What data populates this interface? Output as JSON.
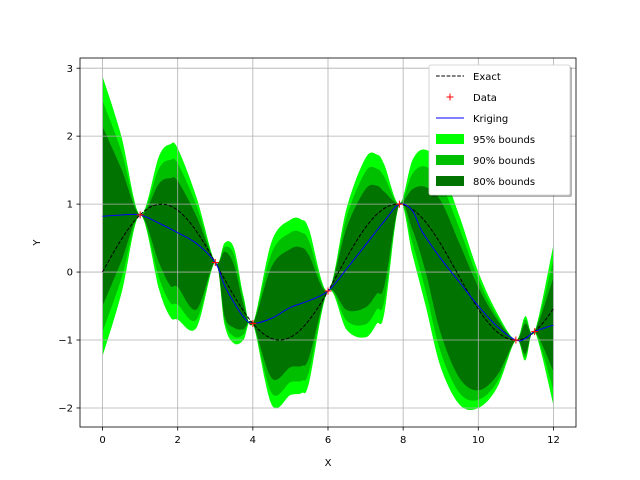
{
  "chart_data": {
    "type": "line",
    "xlabel": "X",
    "ylabel": "Y",
    "xlim": [
      -0.6,
      12.6
    ],
    "ylim": [
      -2.28,
      3.15
    ],
    "xticks": [
      0,
      2,
      4,
      6,
      8,
      10,
      12
    ],
    "yticks": [
      -2,
      -1,
      0,
      1,
      2,
      3
    ],
    "xtick_labels": [
      "0",
      "2",
      "4",
      "6",
      "8",
      "10",
      "12"
    ],
    "ytick_labels": [
      "−2",
      "−1",
      "0",
      "1",
      "2",
      "3"
    ],
    "grid": true,
    "legend_position": "top-right",
    "colors": {
      "exact": "#000000",
      "data": "#ff0000",
      "kriging": "#0000ff",
      "band95": "#00ff00",
      "band90": "#00bf00",
      "band80": "#007300"
    },
    "series": [
      {
        "name": "Exact",
        "style": "dashed-line",
        "function": "sin(x)",
        "x_range": [
          0,
          12
        ]
      },
      {
        "name": "Data",
        "style": "plus-markers",
        "x": [
          1.0,
          3.0,
          4.0,
          6.0,
          7.9,
          11.0,
          11.5
        ],
        "y": [
          0.841,
          0.141,
          -0.757,
          -0.279,
          0.999,
          -1.0,
          -0.876
        ]
      },
      {
        "name": "Kriging",
        "style": "line",
        "x": [
          0,
          0.5,
          1.0,
          1.5,
          2.0,
          2.5,
          3.0,
          3.25,
          3.5,
          3.75,
          4.0,
          4.5,
          5.0,
          5.5,
          6.0,
          6.5,
          7.0,
          7.5,
          7.9,
          8.25,
          8.5,
          9.0,
          9.5,
          10.0,
          10.5,
          11.0,
          11.25,
          11.5,
          12.0
        ],
        "y": [
          0.82,
          0.84,
          0.841,
          0.72,
          0.58,
          0.42,
          0.141,
          -0.2,
          -0.45,
          -0.66,
          -0.757,
          -0.68,
          -0.52,
          -0.42,
          -0.279,
          0.05,
          0.4,
          0.75,
          0.999,
          0.9,
          0.6,
          0.2,
          -0.15,
          -0.5,
          -0.8,
          -1.0,
          -0.98,
          -0.876,
          -0.78
        ]
      }
    ],
    "bands": [
      {
        "name": "95% bounds",
        "x": [
          0,
          0.5,
          1.0,
          1.5,
          1.8,
          2.0,
          2.5,
          3.0,
          3.25,
          3.5,
          3.75,
          4.0,
          4.5,
          5.0,
          5.3,
          5.5,
          6.0,
          6.5,
          7.0,
          7.3,
          7.5,
          7.9,
          8.25,
          8.6,
          9.0,
          9.5,
          10.0,
          10.5,
          11.0,
          11.25,
          11.5,
          12.0
        ],
        "upper": [
          2.88,
          2.0,
          0.841,
          1.7,
          1.88,
          1.82,
          1.1,
          0.141,
          0.43,
          0.35,
          -0.35,
          -0.757,
          0.45,
          0.77,
          0.77,
          0.62,
          -0.279,
          0.95,
          1.68,
          1.73,
          1.58,
          0.999,
          1.65,
          1.8,
          1.55,
          0.82,
          0.0,
          -0.6,
          -1.0,
          -0.65,
          -0.876,
          0.4
        ],
        "lower": [
          -1.24,
          -0.32,
          0.841,
          -0.25,
          -0.66,
          -0.7,
          -0.82,
          0.141,
          -0.78,
          -1.05,
          -1.0,
          -0.757,
          -1.95,
          -1.81,
          -1.78,
          -1.62,
          -0.279,
          -0.85,
          -0.96,
          -0.76,
          -0.6,
          0.999,
          0.25,
          -0.5,
          -1.4,
          -1.95,
          -2.0,
          -1.7,
          -1.0,
          -1.3,
          -0.876,
          -1.96
        ]
      },
      {
        "name": "90% bounds",
        "x": [
          0,
          0.5,
          1.0,
          1.5,
          1.8,
          2.0,
          2.5,
          3.0,
          3.25,
          3.5,
          3.75,
          4.0,
          4.5,
          5.0,
          5.3,
          5.5,
          6.0,
          6.5,
          7.0,
          7.3,
          7.5,
          7.9,
          8.25,
          8.6,
          9.0,
          9.5,
          10.0,
          10.5,
          11.0,
          11.25,
          11.5,
          12.0
        ],
        "upper": [
          2.52,
          1.78,
          0.841,
          1.52,
          1.65,
          1.6,
          0.98,
          0.141,
          0.37,
          0.25,
          -0.4,
          -0.757,
          0.28,
          0.58,
          0.58,
          0.45,
          -0.279,
          0.82,
          1.48,
          1.52,
          1.4,
          0.999,
          1.45,
          1.55,
          1.32,
          0.64,
          -0.1,
          -0.65,
          -1.0,
          -0.7,
          -0.876,
          0.18
        ],
        "lower": [
          -0.88,
          -0.1,
          0.841,
          -0.08,
          -0.45,
          -0.48,
          -0.7,
          0.141,
          -0.72,
          -0.95,
          -0.92,
          -0.757,
          -1.78,
          -1.62,
          -1.6,
          -1.45,
          -0.279,
          -0.72,
          -0.77,
          -0.55,
          -0.42,
          0.999,
          0.42,
          -0.28,
          -1.18,
          -1.78,
          -1.88,
          -1.62,
          -1.0,
          -1.25,
          -0.876,
          -1.74
        ]
      },
      {
        "name": "80% bounds",
        "x": [
          0,
          0.5,
          1.0,
          1.5,
          1.8,
          2.0,
          2.5,
          3.0,
          3.25,
          3.5,
          3.75,
          4.0,
          4.5,
          5.0,
          5.3,
          5.5,
          6.0,
          6.5,
          7.0,
          7.3,
          7.5,
          7.9,
          8.25,
          8.6,
          9.0,
          9.5,
          10.0,
          10.5,
          11.0,
          11.25,
          11.5,
          12.0
        ],
        "upper": [
          2.14,
          1.52,
          0.841,
          1.3,
          1.38,
          1.34,
          0.82,
          0.141,
          0.3,
          0.1,
          -0.48,
          -0.757,
          0.08,
          0.34,
          0.36,
          0.24,
          -0.279,
          0.66,
          1.22,
          1.27,
          1.18,
          0.999,
          1.22,
          1.25,
          1.05,
          0.42,
          -0.22,
          -0.7,
          -1.0,
          -0.76,
          -0.876,
          -0.08
        ],
        "lower": [
          -0.5,
          0.16,
          0.841,
          0.14,
          -0.2,
          -0.22,
          -0.55,
          0.141,
          -0.65,
          -0.82,
          -0.84,
          -0.757,
          -1.56,
          -1.4,
          -1.38,
          -1.25,
          -0.279,
          -0.56,
          -0.52,
          -0.32,
          -0.2,
          0.999,
          0.62,
          0.0,
          -0.9,
          -1.56,
          -1.74,
          -1.52,
          -1.0,
          -1.2,
          -0.876,
          -1.46
        ]
      }
    ],
    "legend": [
      {
        "label": "Exact",
        "kind": "dashed"
      },
      {
        "label": "Data",
        "kind": "plus"
      },
      {
        "label": "Kriging",
        "kind": "line"
      },
      {
        "label": " 95% bounds",
        "kind": "patch",
        "band": "band95"
      },
      {
        "label": " 90% bounds",
        "kind": "patch",
        "band": "band90"
      },
      {
        "label": " 80% bounds",
        "kind": "patch",
        "band": "band80"
      }
    ]
  }
}
